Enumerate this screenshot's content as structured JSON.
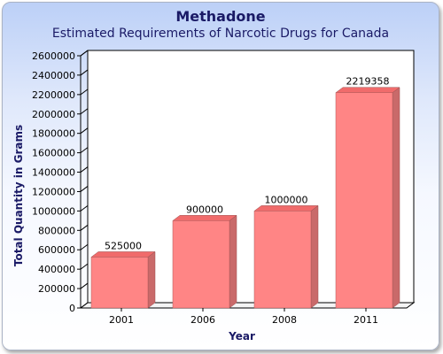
{
  "chart_data": {
    "type": "bar",
    "title": "Methadone",
    "subtitle": "Estimated Requirements of Narcotic Drugs for Canada",
    "xlabel": "Year",
    "ylabel": "Total Quantity in Grams",
    "categories": [
      "2001",
      "2006",
      "2008",
      "2011"
    ],
    "values": [
      525000,
      900000,
      1000000,
      2219358
    ],
    "data_labels": [
      "525000",
      "900000",
      "1000000",
      "2219358"
    ],
    "ylim": [
      0,
      2600000
    ],
    "yticks": [
      0,
      200000,
      400000,
      600000,
      800000,
      1000000,
      1200000,
      1400000,
      1600000,
      1800000,
      2000000,
      2200000,
      2400000,
      2600000
    ],
    "ytick_labels": [
      "0",
      "200000",
      "400000",
      "600000",
      "800000",
      "1000000",
      "1200000",
      "1400000",
      "1600000",
      "1800000",
      "2000000",
      "2200000",
      "2400000",
      "2600000"
    ],
    "grid": false,
    "legend": "none",
    "colors": {
      "bar_front": "#ff8585",
      "bar_top": "#f06b6b",
      "bar_side": "#c96a6a",
      "text_dark": "#1a1a66"
    }
  }
}
